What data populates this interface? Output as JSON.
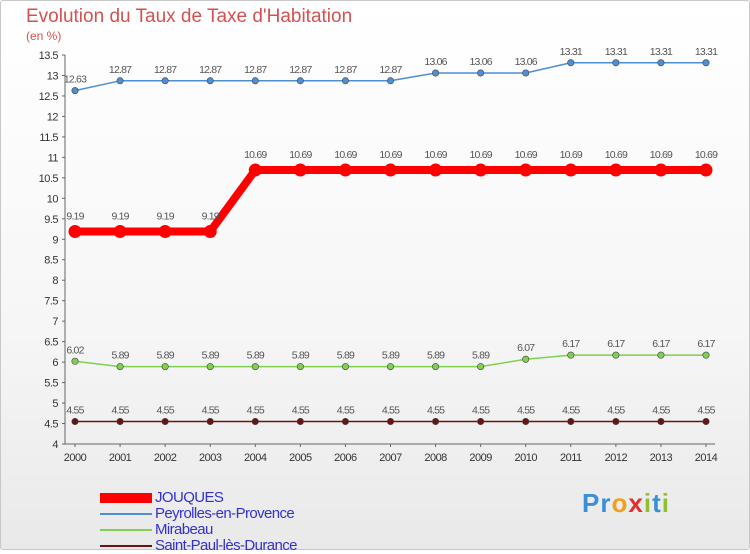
{
  "chart_data": {
    "type": "line",
    "title": "Evolution du Taux de Taxe d'Habitation",
    "ylabel": "(en %)",
    "xlabel": "",
    "x": [
      "2000",
      "2001",
      "2002",
      "2003",
      "2004",
      "2005",
      "2006",
      "2007",
      "2008",
      "2009",
      "2010",
      "2011",
      "2012",
      "2013",
      "2014"
    ],
    "ylim": [
      4,
      13.5
    ],
    "yticks": [
      "4",
      "4.5",
      "5",
      "5.5",
      "6",
      "6.5",
      "7",
      "7.5",
      "8",
      "8.5",
      "9",
      "9.5",
      "10",
      "10.5",
      "11",
      "11.5",
      "12",
      "12.5",
      "13",
      "13.5"
    ],
    "series": [
      {
        "name": "JOUQUES",
        "color": "#ff0000",
        "values": [
          9.19,
          9.19,
          9.19,
          9.19,
          10.69,
          10.69,
          10.69,
          10.69,
          10.69,
          10.69,
          10.69,
          10.69,
          10.69,
          10.69,
          10.69
        ]
      },
      {
        "name": "Peyrolles-en-Provence",
        "color": "#4f8fd0",
        "values": [
          12.63,
          12.87,
          12.87,
          12.87,
          12.87,
          12.87,
          12.87,
          12.87,
          13.06,
          13.06,
          13.06,
          13.31,
          13.31,
          13.31,
          13.31
        ]
      },
      {
        "name": "Mirabeau",
        "color": "#80d050",
        "values": [
          6.02,
          5.89,
          5.89,
          5.89,
          5.89,
          5.89,
          5.89,
          5.89,
          5.89,
          5.89,
          6.07,
          6.17,
          6.17,
          6.17,
          6.17
        ]
      },
      {
        "name": "Saint-Paul-lès-Durance",
        "color": "#6b1212",
        "values": [
          4.55,
          4.55,
          4.55,
          4.55,
          4.55,
          4.55,
          4.55,
          4.55,
          4.55,
          4.55,
          4.55,
          4.55,
          4.55,
          4.55,
          4.55
        ]
      }
    ],
    "point_labels": [
      [
        "9.19",
        "9.19",
        "9.19",
        "9.19",
        "10.69",
        "10.69",
        "10.69",
        "10.69",
        "10.69",
        "10.69",
        "10.69",
        "10.69",
        "10.69",
        "10.69",
        "10.69"
      ],
      [
        "12.63",
        "12.87",
        "12.87",
        "12.87",
        "12.87",
        "12.87",
        "12.87",
        "12.87",
        "13.06",
        "13.06",
        "13.06",
        "13.31",
        "13.31",
        "13.31",
        "13.31"
      ],
      [
        "6.02",
        "5.89",
        "5.89",
        "5.89",
        "5.89",
        "5.89",
        "5.89",
        "5.89",
        "5.89",
        "5.89",
        "6.07",
        "6.17",
        "6.17",
        "6.17",
        "6.17"
      ],
      [
        "4.55",
        "4.55",
        "4.55",
        "4.55",
        "4.55",
        "4.55",
        "4.55",
        "4.55",
        "4.55",
        "4.55",
        "4.55",
        "4.55",
        "4.55",
        "4.55",
        "4.55"
      ]
    ],
    "grid": false,
    "legend_position": "bottom-left"
  },
  "logo": {
    "letters": [
      "P",
      "r",
      "o",
      "x",
      "i",
      "t",
      "i"
    ],
    "colors": [
      "#3a8fd8",
      "#3a8fd8",
      "#f0a020",
      "#e03030",
      "#90c030",
      "#3a8fd8",
      "#90c030"
    ]
  }
}
